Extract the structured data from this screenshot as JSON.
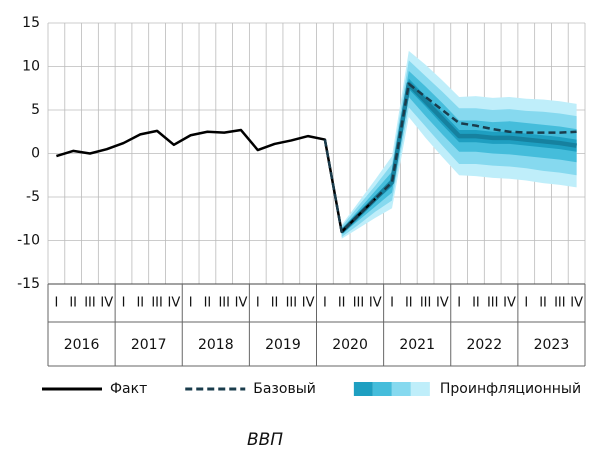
{
  "chart_data": {
    "type": "fan",
    "title": "ВВП",
    "categories": [
      "I",
      "II",
      "III",
      "IV",
      "I",
      "II",
      "III",
      "IV",
      "I",
      "II",
      "III",
      "IV",
      "I",
      "II",
      "III",
      "IV",
      "I",
      "II",
      "III",
      "IV",
      "I",
      "II",
      "III",
      "IV",
      "I",
      "II",
      "III",
      "IV",
      "I",
      "II",
      "III",
      "IV"
    ],
    "years": [
      "2016",
      "2017",
      "2018",
      "2019",
      "2020",
      "2021",
      "2022",
      "2023"
    ],
    "ylim": [
      -15,
      15
    ],
    "yticks": [
      -15,
      -10,
      -5,
      0,
      5,
      10,
      15
    ],
    "grid": true,
    "series": [
      {
        "name": "Факт",
        "color": "#000000",
        "dash": false,
        "values": [
          -0.3,
          0.3,
          0.0,
          0.5,
          1.2,
          2.2,
          2.6,
          1.0,
          2.1,
          2.5,
          2.4,
          2.7,
          0.4,
          1.1,
          1.5,
          2.0,
          1.6,
          -9.0,
          -7.1,
          -5.2,
          null,
          null,
          null,
          null,
          null,
          null,
          null,
          null,
          null,
          null,
          null,
          null
        ]
      },
      {
        "name": "Базовый",
        "color": "#1a3c4c",
        "dash": true,
        "values": [
          null,
          null,
          null,
          null,
          null,
          null,
          null,
          null,
          null,
          null,
          null,
          null,
          null,
          null,
          null,
          null,
          1.6,
          -9.0,
          -7.1,
          -5.2,
          -3.3,
          8.0,
          6.5,
          5.0,
          3.5,
          3.2,
          2.8,
          2.5,
          2.4,
          2.4,
          2.4,
          2.5
        ]
      },
      {
        "name": "Проинфляционный",
        "color": "#16819f",
        "dash": false,
        "values": [
          null,
          null,
          null,
          null,
          null,
          null,
          null,
          null,
          null,
          null,
          null,
          null,
          null,
          null,
          null,
          null,
          null,
          -9.0,
          -7.1,
          -5.2,
          -3.3,
          8.0,
          6.0,
          4.0,
          2.0,
          2.0,
          1.8,
          1.8,
          1.6,
          1.4,
          1.2,
          0.9
        ],
        "bands": [
          {
            "color": "#bfeefa",
            "upper": [
              null,
              null,
              null,
              null,
              null,
              null,
              null,
              null,
              null,
              null,
              null,
              null,
              null,
              null,
              null,
              null,
              null,
              -8.2,
              -5.6,
              -3.0,
              -0.3,
              11.8,
              10.2,
              8.4,
              6.5,
              6.6,
              6.4,
              6.5,
              6.3,
              6.2,
              6.0,
              5.7
            ],
            "lower": [
              null,
              null,
              null,
              null,
              null,
              null,
              null,
              null,
              null,
              null,
              null,
              null,
              null,
              null,
              null,
              null,
              null,
              -9.8,
              -8.6,
              -7.4,
              -6.3,
              4.2,
              1.8,
              -0.4,
              -2.5,
              -2.6,
              -2.8,
              -2.9,
              -3.1,
              -3.4,
              -3.6,
              -3.9
            ]
          },
          {
            "color": "#86d9ef",
            "upper": [
              null,
              null,
              null,
              null,
              null,
              null,
              null,
              null,
              null,
              null,
              null,
              null,
              null,
              null,
              null,
              null,
              null,
              -8.4,
              -6.0,
              -3.7,
              -1.2,
              10.7,
              8.9,
              7.1,
              5.2,
              5.2,
              5.0,
              5.1,
              4.9,
              4.8,
              4.6,
              4.3
            ],
            "lower": [
              null,
              null,
              null,
              null,
              null,
              null,
              null,
              null,
              null,
              null,
              null,
              null,
              null,
              null,
              null,
              null,
              null,
              -9.6,
              -8.2,
              -6.7,
              -5.4,
              5.3,
              3.1,
              0.9,
              -1.2,
              -1.2,
              -1.4,
              -1.5,
              -1.7,
              -2.0,
              -2.2,
              -2.5
            ]
          },
          {
            "color": "#45bddb",
            "upper": [
              null,
              null,
              null,
              null,
              null,
              null,
              null,
              null,
              null,
              null,
              null,
              null,
              null,
              null,
              null,
              null,
              null,
              -8.7,
              -6.5,
              -4.3,
              -2.1,
              9.5,
              7.7,
              5.8,
              3.8,
              3.8,
              3.6,
              3.7,
              3.5,
              3.3,
              3.1,
              2.8
            ],
            "lower": [
              null,
              null,
              null,
              null,
              null,
              null,
              null,
              null,
              null,
              null,
              null,
              null,
              null,
              null,
              null,
              null,
              null,
              -9.3,
              -7.7,
              -6.1,
              -4.5,
              6.5,
              4.3,
              2.2,
              0.2,
              0.2,
              0.0,
              -0.1,
              -0.3,
              -0.5,
              -0.7,
              -1.0
            ]
          },
          {
            "color": "#1e9fc1",
            "upper": [
              null,
              null,
              null,
              null,
              null,
              null,
              null,
              null,
              null,
              null,
              null,
              null,
              null,
              null,
              null,
              null,
              null,
              -8.9,
              -6.9,
              -4.9,
              -2.8,
              8.6,
              6.6,
              4.7,
              2.7,
              2.7,
              2.5,
              2.5,
              2.3,
              2.1,
              1.9,
              1.6
            ],
            "lower": [
              null,
              null,
              null,
              null,
              null,
              null,
              null,
              null,
              null,
              null,
              null,
              null,
              null,
              null,
              null,
              null,
              null,
              -9.1,
              -7.3,
              -5.5,
              -3.8,
              7.4,
              5.4,
              3.3,
              1.3,
              1.3,
              1.1,
              1.1,
              0.9,
              0.7,
              0.5,
              0.2
            ]
          }
        ]
      }
    ]
  }
}
